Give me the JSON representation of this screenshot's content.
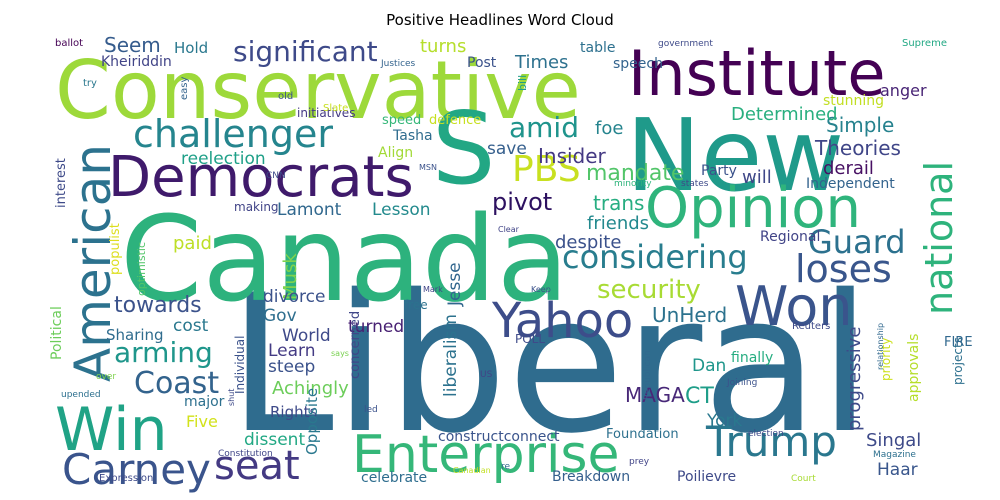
{
  "chart_data": {
    "type": "wordcloud",
    "title": "Positive Headlines Word Cloud",
    "colormap": "viridis",
    "background": "#ffffff",
    "words": [
      {
        "text": "Liberal",
        "weight": 1.0,
        "color": "#2f6c8e"
      },
      {
        "text": "Canada",
        "weight": 0.72,
        "color": "#2db27d"
      },
      {
        "text": "New",
        "weight": 0.55,
        "color": "#1f9a8a"
      },
      {
        "text": "Conservative",
        "weight": 0.55,
        "color": "#9dd93a"
      },
      {
        "text": "S",
        "weight": 0.5,
        "color": "#22a784"
      },
      {
        "text": "Institute",
        "weight": 0.4,
        "color": "#440154"
      },
      {
        "text": "Democrats",
        "weight": 0.37,
        "color": "#3f1a6b"
      },
      {
        "text": "Win",
        "weight": 0.37,
        "color": "#20a386"
      },
      {
        "text": "Opinion",
        "weight": 0.34,
        "color": "#2fb47c"
      },
      {
        "text": "American",
        "weight": 0.33,
        "color": "#2c728e"
      },
      {
        "text": "Won",
        "weight": 0.31,
        "color": "#3a548c"
      },
      {
        "text": "Enterprise",
        "weight": 0.31,
        "color": "#35b779"
      },
      {
        "text": "Yahoo",
        "weight": 0.29,
        "color": "#3d4d8a"
      },
      {
        "text": "Trump",
        "weight": 0.25,
        "color": "#2a778e"
      },
      {
        "text": "Carney",
        "weight": 0.24,
        "color": "#3a548c"
      },
      {
        "text": "seat",
        "weight": 0.23,
        "color": "#443a83"
      },
      {
        "text": "challenger",
        "weight": 0.23,
        "color": "#25858e"
      },
      {
        "text": "national",
        "weight": 0.21,
        "color": "#2eb37c"
      },
      {
        "text": "loses",
        "weight": 0.21,
        "color": "#39568c"
      },
      {
        "text": "PBS",
        "weight": 0.2,
        "color": "#c8e020"
      },
      {
        "text": "considering",
        "weight": 0.19,
        "color": "#287d8e"
      },
      {
        "text": "Guard",
        "weight": 0.19,
        "color": "#2c718e"
      },
      {
        "text": "significant",
        "weight": 0.18,
        "color": "#3e4a89"
      },
      {
        "text": "amid",
        "weight": 0.18,
        "color": "#1f948c"
      },
      {
        "text": "Coast",
        "weight": 0.18,
        "color": "#33638d"
      },
      {
        "text": "arming",
        "weight": 0.17,
        "color": "#1f968b"
      },
      {
        "text": "security",
        "weight": 0.16,
        "color": "#a8db34"
      },
      {
        "text": "mandate",
        "weight": 0.15,
        "color": "#52c569"
      },
      {
        "text": "pivot",
        "weight": 0.15,
        "color": "#2d1160"
      },
      {
        "text": "towards",
        "weight": 0.14,
        "color": "#3b528b"
      },
      {
        "text": "Insider",
        "weight": 0.13,
        "color": "#443983"
      },
      {
        "text": "Simple",
        "weight": 0.12,
        "color": "#26828e"
      },
      {
        "text": "Theories",
        "weight": 0.12,
        "color": "#404688"
      },
      {
        "text": "Determined",
        "weight": 0.12,
        "color": "#29af7f"
      },
      {
        "text": "Seem",
        "weight": 0.12,
        "color": "#365c8d"
      },
      {
        "text": "turns",
        "weight": 0.12,
        "color": "#b5de2b"
      },
      {
        "text": "foe",
        "weight": 0.12,
        "color": "#25848e"
      },
      {
        "text": "Times",
        "weight": 0.12,
        "color": "#2d718e"
      },
      {
        "text": "save",
        "weight": 0.11,
        "color": "#355f8d"
      },
      {
        "text": "Lamont",
        "weight": 0.11,
        "color": "#31688e"
      },
      {
        "text": "Lesson",
        "weight": 0.11,
        "color": "#238a8d"
      },
      {
        "text": "reelection",
        "weight": 0.11,
        "color": "#1fa088"
      },
      {
        "text": "will",
        "weight": 0.11,
        "color": "#3f4788"
      },
      {
        "text": "derail",
        "weight": 0.11,
        "color": "#471063"
      },
      {
        "text": "trans",
        "weight": 0.11,
        "color": "#27ad81"
      },
      {
        "text": "friends",
        "weight": 0.11,
        "color": "#23898e"
      },
      {
        "text": "despite",
        "weight": 0.11,
        "color": "#3b518b"
      },
      {
        "text": "Jesse",
        "weight": 0.11,
        "color": "#31668e"
      },
      {
        "text": "Musk",
        "weight": 0.11,
        "color": "#7fd34e"
      },
      {
        "text": "paid",
        "weight": 0.11,
        "color": "#bddf26"
      },
      {
        "text": "Regional",
        "weight": 0.1,
        "color": "#414487"
      },
      {
        "text": "Independent",
        "weight": 0.1,
        "color": "#33638d"
      },
      {
        "text": "Party",
        "weight": 0.1,
        "color": "#3b528b"
      },
      {
        "text": "anger",
        "weight": 0.1,
        "color": "#482475"
      },
      {
        "text": "UnHerd",
        "weight": 0.1,
        "color": "#2c728e"
      },
      {
        "text": "cost",
        "weight": 0.1,
        "color": "#2a788e"
      },
      {
        "text": "divorce",
        "weight": 0.1,
        "color": "#3b528b"
      },
      {
        "text": "Gov",
        "weight": 0.1,
        "color": "#2e6e8e"
      },
      {
        "text": "World",
        "weight": 0.1,
        "color": "#3e4989"
      },
      {
        "text": "liberalism",
        "weight": 0.1,
        "color": "#2c728e"
      },
      {
        "text": "turned",
        "weight": 0.1,
        "color": "#482173"
      },
      {
        "text": "Learn",
        "weight": 0.1,
        "color": "#443b84"
      },
      {
        "text": "steep",
        "weight": 0.1,
        "color": "#3b528b"
      },
      {
        "text": "Achingly",
        "weight": 0.1,
        "color": "#6ccd5a"
      },
      {
        "text": "Sharing",
        "weight": 0.09,
        "color": "#2f6c8e"
      },
      {
        "text": "progressive",
        "weight": 0.09,
        "color": "#3e4a89"
      },
      {
        "text": "CT",
        "weight": 0.09,
        "color": "#1f9e89"
      },
      {
        "text": "MAGA",
        "weight": 0.09,
        "color": "#482878"
      },
      {
        "text": "Dan",
        "weight": 0.09,
        "color": "#1f968b"
      },
      {
        "text": "York",
        "weight": 0.09,
        "color": "#2a788e"
      },
      {
        "text": "Singal",
        "weight": 0.09,
        "color": "#3e4a89"
      },
      {
        "text": "Haar",
        "weight": 0.09,
        "color": "#39568c"
      },
      {
        "text": "Poilievre",
        "weight": 0.08,
        "color": "#3e4a89"
      },
      {
        "text": "dissent",
        "weight": 0.09,
        "color": "#22a884"
      },
      {
        "text": "Five",
        "weight": 0.09,
        "color": "#d2e21b"
      },
      {
        "text": "Rights",
        "weight": 0.09,
        "color": "#3e4a89"
      },
      {
        "text": "major",
        "weight": 0.08,
        "color": "#2d708e"
      },
      {
        "text": "Hold",
        "weight": 0.08,
        "color": "#2a788e"
      },
      {
        "text": "Kheiriddin",
        "weight": 0.07,
        "color": "#414487"
      },
      {
        "text": "table",
        "weight": 0.07,
        "color": "#2d708e"
      },
      {
        "text": "speech",
        "weight": 0.07,
        "color": "#33638d"
      },
      {
        "text": "Post",
        "weight": 0.07,
        "color": "#3b528b"
      },
      {
        "text": "Tasha",
        "weight": 0.07,
        "color": "#2f6c8e"
      },
      {
        "text": "Align",
        "weight": 0.07,
        "color": "#a2da37"
      },
      {
        "text": "speed",
        "weight": 0.07,
        "color": "#35b779"
      },
      {
        "text": "defence",
        "weight": 0.06,
        "color": "#c8e020"
      },
      {
        "text": "stunning",
        "weight": 0.07,
        "color": "#c2df23"
      },
      {
        "text": "initiatives",
        "weight": 0.06,
        "color": "#443983"
      },
      {
        "text": "making",
        "weight": 0.06,
        "color": "#414487"
      },
      {
        "text": "Political",
        "weight": 0.07,
        "color": "#6ccd5a"
      },
      {
        "text": "populist",
        "weight": 0.06,
        "color": "#ddde1f"
      },
      {
        "text": "optimistic",
        "weight": 0.05,
        "color": "#52c569"
      },
      {
        "text": "interest",
        "weight": 0.06,
        "color": "#3e4a89"
      },
      {
        "text": "concerned",
        "weight": 0.06,
        "color": "#404688"
      },
      {
        "text": "Individual",
        "weight": 0.05,
        "color": "#3b528b"
      },
      {
        "text": "Opposite",
        "weight": 0.06,
        "color": "#2a788e"
      },
      {
        "text": "constructconnect",
        "weight": 0.06,
        "color": "#3a548c"
      },
      {
        "text": "Foundation",
        "weight": 0.06,
        "color": "#2d708e"
      },
      {
        "text": "celebrate",
        "weight": 0.06,
        "color": "#2e6d8e"
      },
      {
        "text": "Breakdown",
        "weight": 0.06,
        "color": "#355f8d"
      },
      {
        "text": "approvals",
        "weight": 0.06,
        "color": "#b5de2b"
      },
      {
        "text": "priority",
        "weight": 0.05,
        "color": "#cde11d"
      },
      {
        "text": "finally",
        "weight": 0.06,
        "color": "#27ad81"
      },
      {
        "text": "projects",
        "weight": 0.05,
        "color": "#2d708e"
      },
      {
        "text": "FIRE",
        "weight": 0.05,
        "color": "#31688e"
      },
      {
        "text": "POLL",
        "weight": 0.05,
        "color": "#3e4a89"
      },
      {
        "text": "Supreme",
        "weight": 0.04,
        "color": "#22a884"
      },
      {
        "text": "government",
        "weight": 0.04,
        "color": "#3e4a89"
      },
      {
        "text": "ballot",
        "weight": 0.04,
        "color": "#440154"
      },
      {
        "text": "try",
        "weight": 0.04,
        "color": "#2a788e"
      },
      {
        "text": "easy",
        "weight": 0.04,
        "color": "#33638d"
      },
      {
        "text": "Justices",
        "weight": 0.04,
        "color": "#33638d"
      },
      {
        "text": "old",
        "weight": 0.04,
        "color": "#3b528b"
      },
      {
        "text": "Slate",
        "weight": 0.04,
        "color": "#c8e020"
      },
      {
        "text": "bill",
        "weight": 0.04,
        "color": "#1f9e89"
      },
      {
        "text": "MSN",
        "weight": 0.03,
        "color": "#3b528b"
      },
      {
        "text": "CNN",
        "weight": 0.03,
        "color": "#3e4a89"
      },
      {
        "text": "minority",
        "weight": 0.03,
        "color": "#2fb47c"
      },
      {
        "text": "states",
        "weight": 0.03,
        "color": "#3e4a89"
      },
      {
        "text": "Clear",
        "weight": 0.03,
        "color": "#414487"
      },
      {
        "text": "Mark",
        "weight": 0.03,
        "color": "#414487"
      },
      {
        "text": "Keep",
        "weight": 0.03,
        "color": "#3b528b"
      },
      {
        "text": "free",
        "weight": 0.04,
        "color": "#2c728e"
      },
      {
        "text": "Reuters",
        "weight": 0.04,
        "color": "#3e4a89"
      },
      {
        "text": "relationship",
        "weight": 0.03,
        "color": "#31688e"
      },
      {
        "text": "says",
        "weight": 0.03,
        "color": "#7ad151"
      },
      {
        "text": "US",
        "weight": 0.03,
        "color": "#414487"
      },
      {
        "text": "Republican",
        "weight": 0.03,
        "color": "#31688e"
      },
      {
        "text": "Joining",
        "weight": 0.03,
        "color": "#3b528b"
      },
      {
        "text": "over",
        "weight": 0.03,
        "color": "#7fd34e"
      },
      {
        "text": "shut",
        "weight": 0.03,
        "color": "#3e4a89"
      },
      {
        "text": "upended",
        "weight": 0.03,
        "color": "#2d708e"
      },
      {
        "text": "led",
        "weight": 0.03,
        "color": "#3b528b"
      },
      {
        "text": "Constitution",
        "weight": 0.03,
        "color": "#404688"
      },
      {
        "text": "election",
        "weight": 0.03,
        "color": "#3e4a89"
      },
      {
        "text": "prey",
        "weight": 0.03,
        "color": "#414487"
      },
      {
        "text": "Magazine",
        "weight": 0.03,
        "color": "#2d708e"
      },
      {
        "text": "re",
        "weight": 0.03,
        "color": "#31688e"
      },
      {
        "text": "Canadian",
        "weight": 0.03,
        "color": "#c2df23"
      },
      {
        "text": "Expression",
        "weight": 0.03,
        "color": "#3e4a89"
      },
      {
        "text": "Court",
        "weight": 0.03,
        "color": "#a8db34"
      }
    ]
  }
}
